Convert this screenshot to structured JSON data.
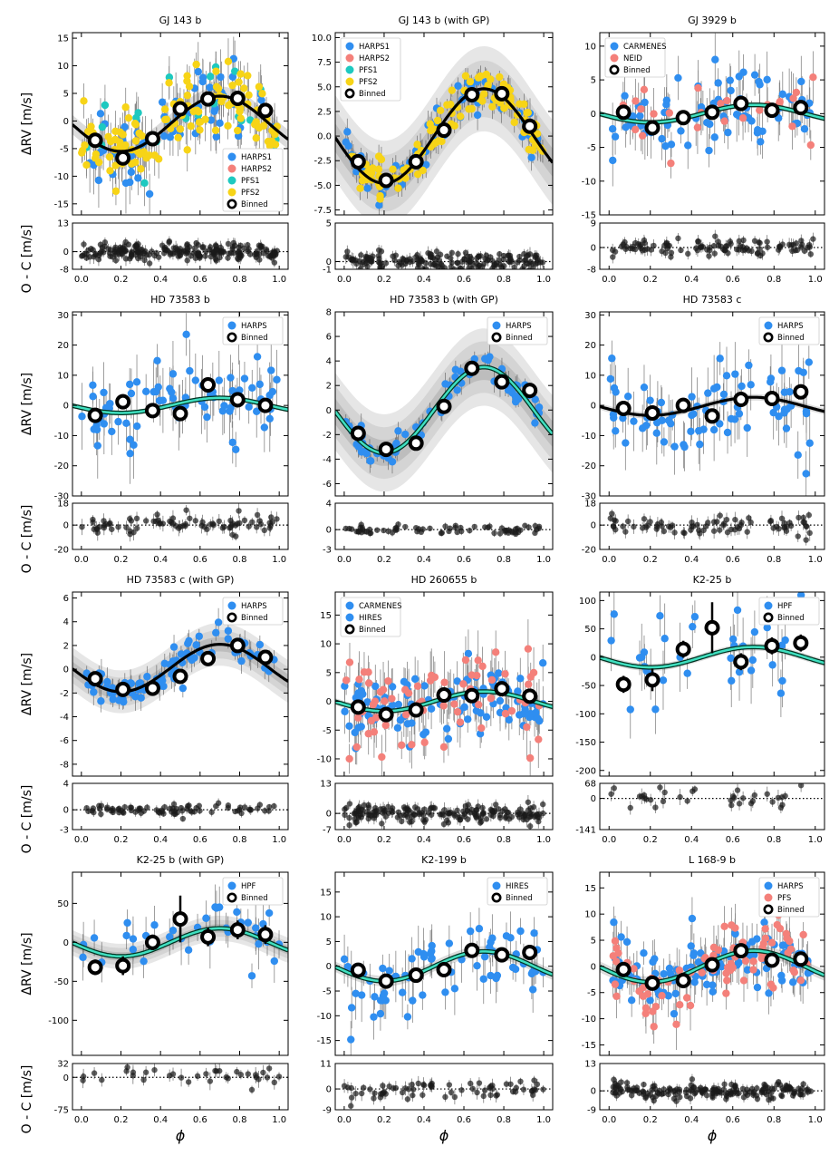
{
  "figure": {
    "ylabel_main": "ΔRV [m/s]",
    "ylabel_resid": "O - C [m/s]",
    "xlabel": "ϕ",
    "xticks": [
      "0.0",
      "0.2",
      "0.4",
      "0.6",
      "0.8",
      "1.0"
    ]
  },
  "colors": {
    "HARPS1": "#2f8ef0",
    "HARPS": "#2f8ef0",
    "HARPS2": "#f4807a",
    "PFS1": "#1ec9c0",
    "PFS2": "#f7d417",
    "CARMENES": "#2f8ef0",
    "NEID": "#f4807a",
    "HIRES_blue": "#2f8ef0",
    "HIRES_red": "#f4807a",
    "HPF": "#2f8ef0",
    "PFS": "#f4807a",
    "model_fill": "#40e0c0"
  },
  "chart_data": [
    {
      "type": "scatter",
      "title": "GJ 143 b",
      "ylim": [
        -17,
        16
      ],
      "yticks": [
        -15,
        -10,
        -5,
        0,
        5,
        10,
        15
      ],
      "resid_ylim": [
        -8,
        13
      ],
      "resid_ticks": [
        -8,
        0,
        13
      ],
      "model": {
        "amp": 5.0,
        "phase": 0.45,
        "offset": -0.5,
        "style": "black"
      },
      "legend": {
        "entries": [
          "HARPS1",
          "HARPS2",
          "PFS1",
          "PFS2",
          "Binned"
        ],
        "loc": "bottom-right"
      },
      "series": [
        {
          "name": "HARPS1",
          "color": "#2f8ef0",
          "n": 70,
          "scatter": 4
        },
        {
          "name": "PFS1",
          "color": "#1ec9c0",
          "n": 25,
          "scatter": 4
        },
        {
          "name": "PFS2",
          "color": "#f7d417",
          "n": 120,
          "scatter": 3
        }
      ],
      "binned": {
        "x": [
          0.07,
          0.21,
          0.36,
          0.5,
          0.64,
          0.79,
          0.93
        ],
        "y": [
          -3.5,
          -6.7,
          -3.2,
          2.2,
          4.0,
          4.1,
          1.9
        ],
        "err": [
          0.5,
          0.5,
          0.5,
          0.5,
          0.5,
          0.5,
          0.5
        ]
      }
    },
    {
      "type": "scatter",
      "title": "GJ 143 b (with GP)",
      "ylim": [
        -8,
        10.5
      ],
      "yticks": [
        -7.5,
        -5.0,
        -2.5,
        0.0,
        2.5,
        5.0,
        7.5,
        10.0
      ],
      "resid_ylim": [
        -1,
        5
      ],
      "resid_ticks": [
        -1,
        0,
        5
      ],
      "model": {
        "amp": 4.8,
        "phase": 0.45,
        "offset": 0.0,
        "style": "black",
        "band": true
      },
      "legend": {
        "entries": [
          "HARPS1",
          "HARPS2",
          "PFS1",
          "PFS2",
          "Binned"
        ],
        "loc": "top-left"
      },
      "series": [
        {
          "name": "HARPS1",
          "color": "#2f8ef0",
          "n": 60,
          "scatter": 1.2
        },
        {
          "name": "PFS2",
          "color": "#f7d417",
          "n": 120,
          "scatter": 1.0
        }
      ],
      "binned": {
        "x": [
          0.07,
          0.21,
          0.36,
          0.5,
          0.64,
          0.79,
          0.93
        ],
        "y": [
          -2.6,
          -4.5,
          -2.6,
          0.6,
          4.2,
          4.3,
          1.0
        ],
        "err": [
          0.4,
          0.4,
          0.4,
          0.4,
          0.4,
          0.4,
          0.4
        ]
      }
    },
    {
      "type": "scatter",
      "title": "GJ 3929 b",
      "ylim": [
        -15,
        12
      ],
      "yticks": [
        -15,
        -10,
        -5,
        0,
        5,
        10
      ],
      "resid_ylim": [
        -8,
        9
      ],
      "resid_ticks": [
        -8,
        0,
        9
      ],
      "model": {
        "amp": 1.3,
        "phase": 0.4,
        "offset": 0.0,
        "style": "teal"
      },
      "legend": {
        "entries": [
          "CARMENES",
          "NEID",
          "Binned"
        ],
        "loc": "top-left"
      },
      "series": [
        {
          "name": "CARMENES",
          "color": "#2f8ef0",
          "n": 80,
          "scatter": 3
        },
        {
          "name": "NEID",
          "color": "#f4807a",
          "n": 25,
          "scatter": 3
        }
      ],
      "binned": {
        "x": [
          0.07,
          0.21,
          0.36,
          0.5,
          0.64,
          0.79,
          0.93
        ],
        "y": [
          0.2,
          -2.1,
          -0.6,
          0.2,
          1.5,
          0.5,
          0.9
        ],
        "err": [
          0.6,
          0.6,
          0.6,
          0.6,
          0.6,
          0.6,
          0.6
        ]
      }
    },
    {
      "type": "scatter",
      "title": "HD 73583 b",
      "ylim": [
        -30,
        31
      ],
      "yticks": [
        -30,
        -20,
        -10,
        0,
        10,
        20,
        30
      ],
      "resid_ylim": [
        -20,
        18
      ],
      "resid_ticks": [
        -20,
        0,
        18
      ],
      "model": {
        "amp": 2.5,
        "phase": 0.45,
        "offset": 0.0,
        "style": "teal"
      },
      "legend": {
        "entries": [
          "HARPS",
          "Binned"
        ],
        "loc": "top-right"
      },
      "series": [
        {
          "name": "HARPS",
          "color": "#2f8ef0",
          "n": 80,
          "scatter": 8
        }
      ],
      "binned": {
        "x": [
          0.07,
          0.21,
          0.36,
          0.5,
          0.64,
          0.79,
          0.93
        ],
        "y": [
          -3.3,
          1.2,
          -1.7,
          -2.7,
          6.8,
          1.9,
          0.0
        ],
        "err": [
          2.5,
          2.5,
          2.5,
          2.5,
          2.5,
          2.5,
          2.5
        ]
      }
    },
    {
      "type": "scatter",
      "title": "HD 73583 b (with GP)",
      "ylim": [
        -7,
        8
      ],
      "yticks": [
        -6,
        -4,
        -2,
        0,
        2,
        4,
        6,
        8
      ],
      "resid_ylim": [
        -3,
        4
      ],
      "resid_ticks": [
        -3,
        0,
        4
      ],
      "model": {
        "amp": 3.5,
        "phase": 0.45,
        "offset": 0.0,
        "style": "teal",
        "band": true
      },
      "legend": {
        "entries": [
          "HARPS",
          "Binned"
        ],
        "loc": "top-right"
      },
      "series": [
        {
          "name": "HARPS",
          "color": "#2f8ef0",
          "n": 70,
          "scatter": 0.7
        }
      ],
      "binned": {
        "x": [
          0.07,
          0.21,
          0.36,
          0.5,
          0.64,
          0.79,
          0.93
        ],
        "y": [
          -1.9,
          -3.2,
          -2.7,
          0.3,
          3.4,
          2.3,
          1.6
        ],
        "err": [
          0.4,
          0.4,
          0.4,
          0.4,
          0.4,
          0.4,
          0.4
        ]
      }
    },
    {
      "type": "scatter",
      "title": "HD 73583 c",
      "ylim": [
        -30,
        31
      ],
      "yticks": [
        -30,
        -20,
        -10,
        0,
        10,
        20,
        30
      ],
      "resid_ylim": [
        -20,
        18
      ],
      "resid_ticks": [
        -20,
        0,
        18
      ],
      "model": {
        "amp": 3.0,
        "phase": 0.45,
        "offset": -0.3,
        "style": "black"
      },
      "legend": {
        "entries": [
          "HARPS",
          "Binned"
        ],
        "loc": "top-right"
      },
      "series": [
        {
          "name": "HARPS",
          "color": "#2f8ef0",
          "n": 80,
          "scatter": 8
        }
      ],
      "binned": {
        "x": [
          0.07,
          0.21,
          0.36,
          0.5,
          0.64,
          0.79,
          0.93
        ],
        "y": [
          -1.0,
          -2.5,
          0.0,
          -3.5,
          2.0,
          2.3,
          4.5
        ],
        "err": [
          2.5,
          2.5,
          2.5,
          2.5,
          2.5,
          2.5,
          2.5
        ]
      }
    },
    {
      "type": "scatter",
      "title": "HD 73583 c (with GP)",
      "ylim": [
        -9,
        6.5
      ],
      "yticks": [
        -8,
        -6,
        -4,
        -2,
        0,
        2,
        4,
        6
      ],
      "resid_ylim": [
        -3,
        4
      ],
      "resid_ticks": [
        -3,
        0,
        4
      ],
      "model": {
        "amp": 2.0,
        "phase": 0.45,
        "offset": 0.1,
        "style": "black",
        "band": true
      },
      "legend": {
        "entries": [
          "HARPS",
          "Binned"
        ],
        "loc": "top-right"
      },
      "series": [
        {
          "name": "HARPS",
          "color": "#2f8ef0",
          "n": 80,
          "scatter": 0.9
        }
      ],
      "binned": {
        "x": [
          0.07,
          0.21,
          0.36,
          0.5,
          0.64,
          0.79,
          0.93
        ],
        "y": [
          -0.8,
          -1.7,
          -1.6,
          -0.6,
          0.9,
          2.0,
          1.0
        ],
        "err": [
          0.3,
          0.3,
          0.3,
          0.3,
          0.3,
          0.3,
          0.3
        ]
      }
    },
    {
      "type": "scatter",
      "title": "HD 260655 b",
      "ylim": [
        -13,
        19
      ],
      "yticks": [
        -10,
        -5,
        0,
        5,
        10,
        15
      ],
      "resid_ylim": [
        -7,
        13
      ],
      "resid_ticks": [
        -7,
        0,
        13
      ],
      "model": {
        "amp": 1.7,
        "phase": 0.45,
        "offset": 0.0,
        "style": "teal"
      },
      "legend": {
        "entries": [
          "CARMENES",
          "HIRES",
          "Binned"
        ],
        "loc": "top-left"
      },
      "series": [
        {
          "name": "CARMENES",
          "color": "#2f8ef0",
          "n": 110,
          "scatter": 3
        },
        {
          "name": "HIRES",
          "color": "#f4807a",
          "n": 70,
          "scatter": 4
        }
      ],
      "binned": {
        "x": [
          0.07,
          0.21,
          0.36,
          0.5,
          0.64,
          0.79,
          0.93
        ],
        "y": [
          -1.0,
          -2.3,
          -1.5,
          1.1,
          1.0,
          2.2,
          0.9
        ],
        "err": [
          0.6,
          0.6,
          0.6,
          0.6,
          0.6,
          0.6,
          0.6
        ]
      }
    },
    {
      "type": "scatter",
      "title": "K2-25 b",
      "ylim": [
        -210,
        115
      ],
      "yticks": [
        -200,
        -150,
        -100,
        -50,
        0,
        50,
        100
      ],
      "resid_ylim": [
        -141,
        68
      ],
      "resid_ticks": [
        -141,
        0,
        68
      ],
      "model": {
        "amp": 18,
        "phase": 0.45,
        "offset": 0.0,
        "style": "teal"
      },
      "legend": {
        "entries": [
          "HPF",
          "Binned"
        ],
        "loc": "top-right"
      },
      "series": [
        {
          "name": "HPF",
          "color": "#2f8ef0",
          "n": 35,
          "scatter": 45
        }
      ],
      "binned": {
        "x": [
          0.07,
          0.21,
          0.36,
          0.5,
          0.64,
          0.79,
          0.93
        ],
        "y": [
          -48,
          -40,
          14,
          52,
          -8,
          20,
          25
        ],
        "err": [
          15,
          20,
          15,
          45,
          15,
          15,
          15
        ]
      }
    },
    {
      "type": "scatter",
      "title": "K2-25 b (with GP)",
      "ylim": [
        -145,
        90
      ],
      "yticks": [
        -100,
        -50,
        0,
        50
      ],
      "resid_ylim": [
        -75,
        32
      ],
      "resid_ticks": [
        -75,
        0,
        32
      ],
      "model": {
        "amp": 18,
        "phase": 0.45,
        "offset": 0.0,
        "style": "teal",
        "band": true
      },
      "legend": {
        "entries": [
          "HPF",
          "Binned"
        ],
        "loc": "top-right"
      },
      "series": [
        {
          "name": "HPF",
          "color": "#2f8ef0",
          "n": 35,
          "scatter": 25
        }
      ],
      "binned": {
        "x": [
          0.07,
          0.21,
          0.36,
          0.5,
          0.64,
          0.79,
          0.93
        ],
        "y": [
          -32,
          -30,
          0,
          30,
          7,
          16,
          10
        ],
        "err": [
          10,
          12,
          10,
          30,
          12,
          12,
          12
        ]
      }
    },
    {
      "type": "scatter",
      "title": "K2-199 b",
      "ylim": [
        -18,
        19
      ],
      "yticks": [
        -15,
        -10,
        -5,
        0,
        5,
        10,
        15
      ],
      "resid_ylim": [
        -9,
        11
      ],
      "resid_ticks": [
        -9,
        0,
        11
      ],
      "model": {
        "amp": 3.0,
        "phase": 0.45,
        "offset": 0.0,
        "style": "teal"
      },
      "legend": {
        "entries": [
          "HIRES",
          "Binned"
        ],
        "loc": "top-right"
      },
      "series": [
        {
          "name": "HIRES",
          "color": "#2f8ef0",
          "n": 70,
          "scatter": 4
        }
      ],
      "binned": {
        "x": [
          0.07,
          0.21,
          0.36,
          0.5,
          0.64,
          0.79,
          0.93
        ],
        "y": [
          -0.8,
          -3.0,
          -1.8,
          -0.7,
          3.2,
          2.3,
          2.8
        ],
        "err": [
          1.3,
          1.3,
          1.3,
          1.3,
          1.3,
          1.3,
          1.3
        ]
      }
    },
    {
      "type": "scatter",
      "title": "L 168-9 b",
      "ylim": [
        -17,
        18
      ],
      "yticks": [
        -15,
        -10,
        -5,
        0,
        5,
        10,
        15
      ],
      "resid_ylim": [
        -9,
        13
      ],
      "resid_ticks": [
        -9,
        0,
        13
      ],
      "model": {
        "amp": 3.0,
        "phase": 0.45,
        "offset": 0.0,
        "style": "teal"
      },
      "legend": {
        "entries": [
          "HARPS",
          "PFS",
          "Binned"
        ],
        "loc": "top-right"
      },
      "series": [
        {
          "name": "HARPS",
          "color": "#2f8ef0",
          "n": 100,
          "scatter": 3
        },
        {
          "name": "PFS",
          "color": "#f4807a",
          "n": 80,
          "scatter": 3.5
        }
      ],
      "binned": {
        "x": [
          0.07,
          0.21,
          0.36,
          0.5,
          0.64,
          0.79,
          0.93
        ],
        "y": [
          -0.6,
          -3.2,
          -2.7,
          0.3,
          3.0,
          1.2,
          1.4
        ],
        "err": [
          0.6,
          0.6,
          0.6,
          0.6,
          0.6,
          0.6,
          0.6
        ]
      }
    }
  ]
}
